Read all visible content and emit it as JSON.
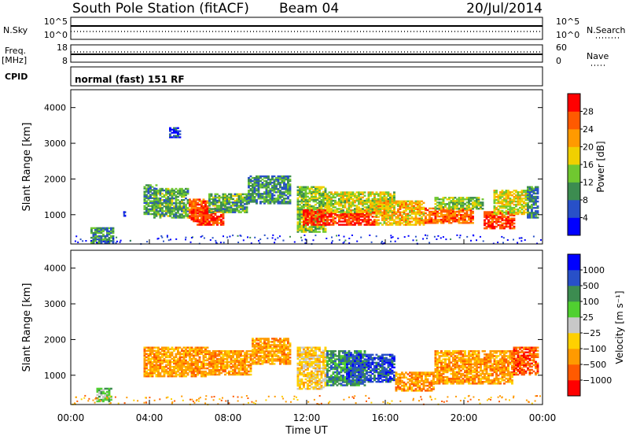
{
  "header": {
    "station": "South Pole Station (fitACF)",
    "beam": "Beam 04",
    "date": "20/Jul/2014"
  },
  "nsky_panel": {
    "left_label": "N.Sky",
    "right_label": "N.Search",
    "left_ticks": [
      "10^5",
      "10^0"
    ],
    "right_ticks": [
      "10^5",
      "10^0"
    ]
  },
  "freq_panel": {
    "left_label": "Freq.",
    "left_unit": "[MHz]",
    "right_label": "Nave",
    "left_ticks": [
      "18",
      "8"
    ],
    "right_ticks": [
      "60",
      "0"
    ]
  },
  "cpid": {
    "label": "CPID",
    "value": "normal (fast) 151 RF"
  },
  "colors": {
    "power": [
      "#0000ff",
      "#2850c8",
      "#3c8c50",
      "#70c830",
      "#f0d000",
      "#ff9a00",
      "#ff5a00",
      "#ff0000"
    ],
    "velocity": [
      "#ff0000",
      "#ff5a00",
      "#ff9a00",
      "#ffd000",
      "#c8c8c8",
      "#50d030",
      "#3c8c50",
      "#2850c8",
      "#0000ff"
    ]
  },
  "chart_data": [
    {
      "type": "heatmap",
      "title": "",
      "xlabel": "",
      "ylabel": "Slant Range [km]",
      "xlim": [
        "00:00",
        "00:00"
      ],
      "ylim": [
        180,
        4500
      ],
      "y_ticks": [
        "1000",
        "2000",
        "3000",
        "4000"
      ],
      "colorbar": {
        "label": "Power [dB]",
        "ticks": [
          "4",
          "8",
          "12",
          "16",
          "20",
          "24",
          "28"
        ],
        "range": [
          0,
          32
        ]
      },
      "blocks": [
        {
          "t0": 1.0,
          "t1": 2.2,
          "r0": 200,
          "r1": 650,
          "v": 10
        },
        {
          "t0": 2.6,
          "t1": 2.8,
          "r0": 950,
          "r1": 1100,
          "v": 6
        },
        {
          "t0": 3.7,
          "t1": 4.4,
          "r0": 1000,
          "r1": 1850,
          "v": 10
        },
        {
          "t0": 4.2,
          "t1": 6.0,
          "r0": 900,
          "r1": 1750,
          "v": 12
        },
        {
          "t0": 5.0,
          "t1": 5.6,
          "r0": 3150,
          "r1": 3450,
          "v": 5
        },
        {
          "t0": 6.0,
          "t1": 7.0,
          "r0": 800,
          "r1": 1450,
          "v": 26
        },
        {
          "t0": 6.4,
          "t1": 7.8,
          "r0": 700,
          "r1": 1200,
          "v": 28
        },
        {
          "t0": 7.0,
          "t1": 9.0,
          "r0": 1050,
          "r1": 1600,
          "v": 12
        },
        {
          "t0": 9.0,
          "t1": 11.2,
          "r0": 1300,
          "r1": 2100,
          "v": 10
        },
        {
          "t0": 11.5,
          "t1": 13.0,
          "r0": 500,
          "r1": 1800,
          "v": 14
        },
        {
          "t0": 11.8,
          "t1": 15.5,
          "r0": 700,
          "r1": 1150,
          "v": 28
        },
        {
          "t0": 13.0,
          "t1": 16.5,
          "r0": 1050,
          "r1": 1650,
          "v": 16
        },
        {
          "t0": 15.5,
          "t1": 18.0,
          "r0": 700,
          "r1": 1400,
          "v": 20
        },
        {
          "t0": 18.0,
          "t1": 20.5,
          "r0": 750,
          "r1": 1200,
          "v": 25
        },
        {
          "t0": 18.5,
          "t1": 21.0,
          "r0": 1150,
          "r1": 1500,
          "v": 14
        },
        {
          "t0": 21.0,
          "t1": 22.6,
          "r0": 600,
          "r1": 1100,
          "v": 28
        },
        {
          "t0": 21.5,
          "t1": 23.3,
          "r0": 1000,
          "r1": 1700,
          "v": 17
        },
        {
          "t0": 23.2,
          "t1": 23.8,
          "r0": 900,
          "r1": 1800,
          "v": 9
        }
      ]
    },
    {
      "type": "heatmap",
      "title": "",
      "xlabel": "Time UT",
      "ylabel": "Slant Range [km]",
      "xlim": [
        "00:00",
        "00:00"
      ],
      "ylim": [
        180,
        4500
      ],
      "x_ticks": [
        "00:00",
        "04:00",
        "08:00",
        "12:00",
        "16:00",
        "20:00",
        "00:00"
      ],
      "y_ticks": [
        "1000",
        "2000",
        "3000",
        "4000"
      ],
      "colorbar": {
        "label": "Velocity [m s⁻¹]",
        "ticks": [
          "1000",
          "500",
          "100",
          "25",
          "−25",
          "−100",
          "−500",
          "−1000"
        ]
      },
      "blocks": [
        {
          "t0": 1.3,
          "t1": 2.1,
          "r0": 250,
          "r1": 650,
          "v": 5
        },
        {
          "t0": 3.7,
          "t1": 7.0,
          "r0": 950,
          "r1": 1800,
          "v": 2
        },
        {
          "t0": 7.0,
          "t1": 9.2,
          "r0": 1000,
          "r1": 1700,
          "v": 2
        },
        {
          "t0": 9.2,
          "t1": 11.2,
          "r0": 1300,
          "r1": 2050,
          "v": 2
        },
        {
          "t0": 11.5,
          "t1": 13.0,
          "r0": 600,
          "r1": 1800,
          "v": 3
        },
        {
          "t0": 13.0,
          "t1": 15.0,
          "r0": 700,
          "r1": 1700,
          "v": 6
        },
        {
          "t0": 14.0,
          "t1": 16.5,
          "r0": 800,
          "r1": 1600,
          "v": 7
        },
        {
          "t0": 16.5,
          "t1": 18.5,
          "r0": 550,
          "r1": 1100,
          "v": 2
        },
        {
          "t0": 18.5,
          "t1": 22.5,
          "r0": 750,
          "r1": 1700,
          "v": 2
        },
        {
          "t0": 22.5,
          "t1": 23.8,
          "r0": 1000,
          "r1": 1800,
          "v": 1
        }
      ]
    }
  ]
}
